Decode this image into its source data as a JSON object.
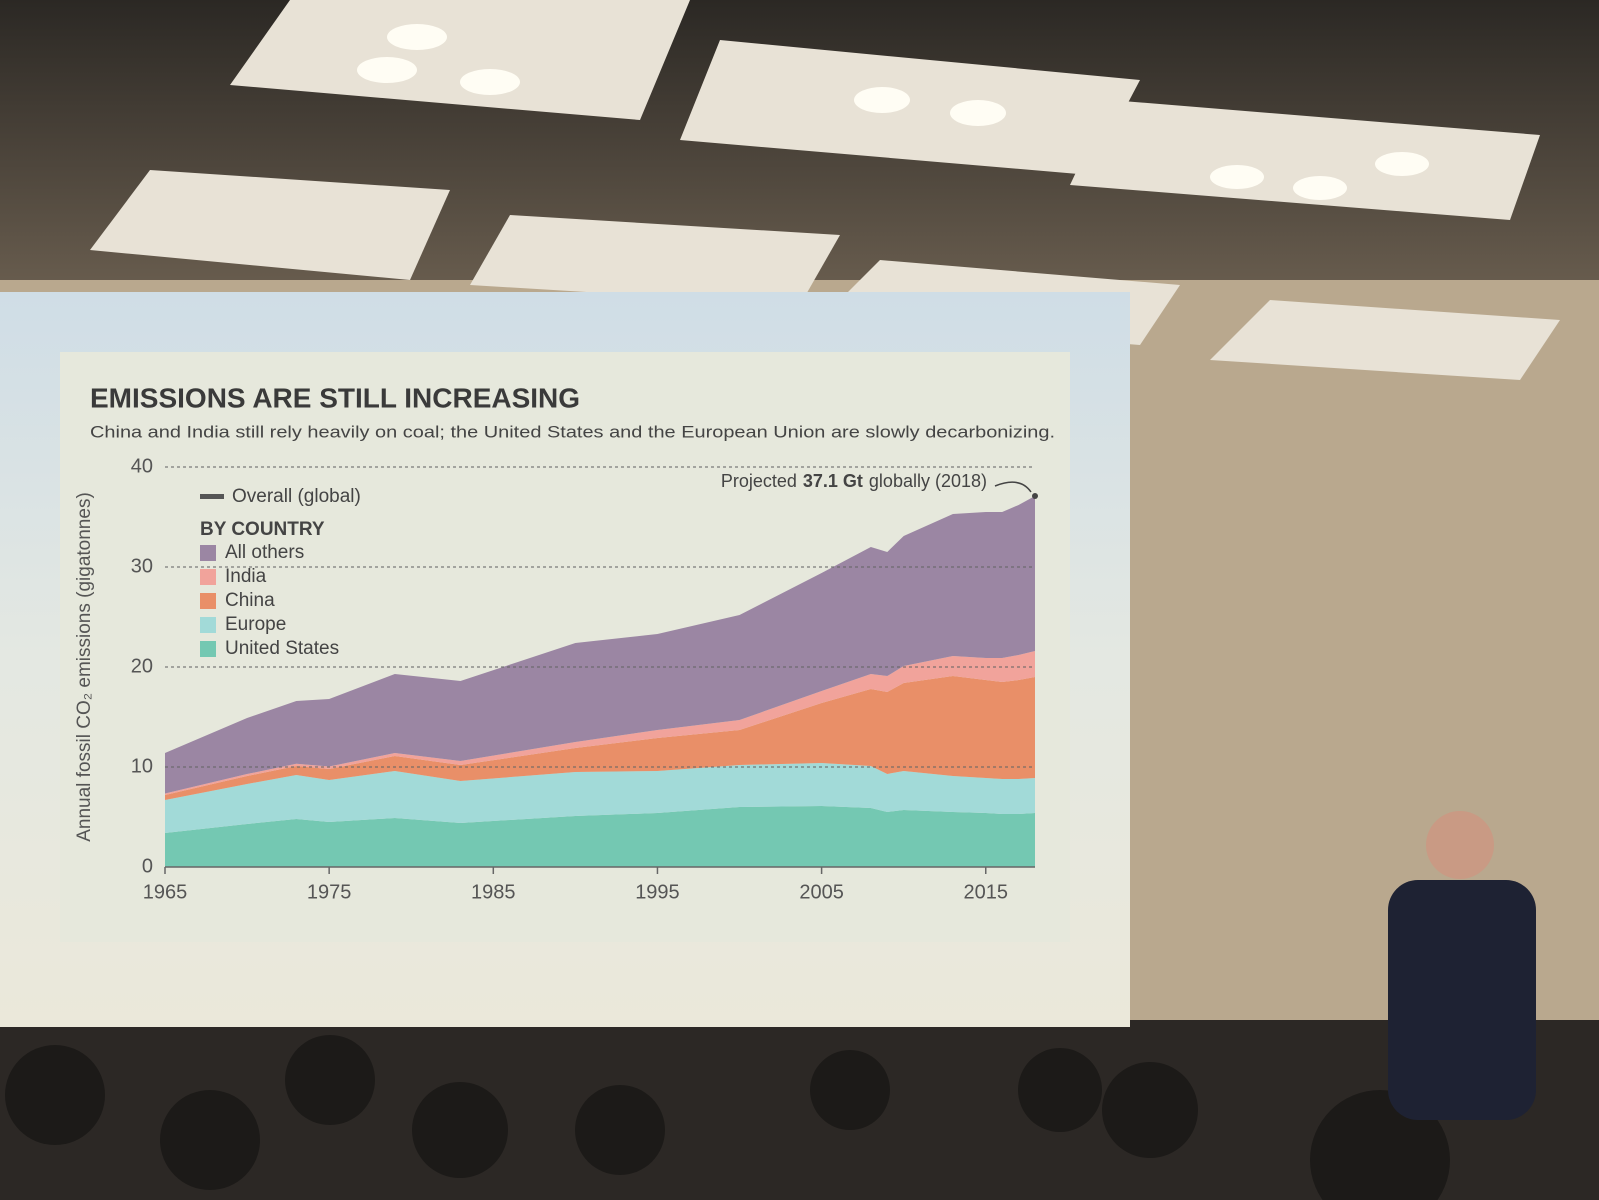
{
  "chart_data": {
    "type": "stacked-area",
    "title": "EMISSIONS ARE STILL INCREASING",
    "subtitle": "China and India still rely heavily on coal; the United States and the European Union are slowly decarbonizing.",
    "ylabel": "Annual fossil CO₂ emissions (gigatonnes)",
    "overall_label": "Overall (global)",
    "legend_heading": "BY COUNTRY",
    "x": [
      1965,
      1970,
      1973,
      1975,
      1979,
      1983,
      1990,
      1995,
      2000,
      2005,
      2008,
      2009,
      2010,
      2013,
      2015,
      2016,
      2017,
      2018
    ],
    "series": [
      {
        "name": "United States",
        "color": "#74c8b2",
        "values": [
          3.4,
          4.3,
          4.8,
          4.5,
          4.9,
          4.4,
          5.1,
          5.4,
          6.0,
          6.1,
          5.9,
          5.5,
          5.7,
          5.5,
          5.4,
          5.3,
          5.3,
          5.4
        ]
      },
      {
        "name": "Europe",
        "color": "#a2dad8",
        "values": [
          3.3,
          4.0,
          4.4,
          4.2,
          4.7,
          4.2,
          4.4,
          4.2,
          4.2,
          4.3,
          4.2,
          3.8,
          3.9,
          3.6,
          3.5,
          3.5,
          3.5,
          3.5
        ]
      },
      {
        "name": "China",
        "color": "#e98f68",
        "values": [
          0.5,
          0.8,
          0.9,
          1.1,
          1.5,
          1.6,
          2.4,
          3.3,
          3.5,
          6.0,
          7.7,
          8.2,
          8.8,
          10.0,
          9.8,
          9.7,
          9.9,
          10.1
        ]
      },
      {
        "name": "India",
        "color": "#f1a39b",
        "values": [
          0.15,
          0.2,
          0.22,
          0.25,
          0.3,
          0.4,
          0.6,
          0.8,
          1.0,
          1.2,
          1.5,
          1.6,
          1.7,
          2.0,
          2.2,
          2.4,
          2.5,
          2.6
        ]
      },
      {
        "name": "All others",
        "color": "#9b86a3",
        "values": [
          4.05,
          5.6,
          6.28,
          6.75,
          7.9,
          8.0,
          9.9,
          9.6,
          10.5,
          11.8,
          12.7,
          12.4,
          13.0,
          14.2,
          14.6,
          14.6,
          15.0,
          15.5
        ]
      }
    ],
    "annotation": {
      "x": 2018,
      "value": 37.1,
      "before": "Projected",
      "value_label": "37.1 Gt",
      "after": "globally (2018)"
    },
    "xlim": [
      1965,
      2018
    ],
    "xticks": [
      1965,
      1975,
      1985,
      1995,
      2005,
      2015
    ],
    "ylim": [
      0,
      40
    ],
    "yticks": [
      0,
      10,
      20,
      30,
      40
    ],
    "grid": true
  }
}
